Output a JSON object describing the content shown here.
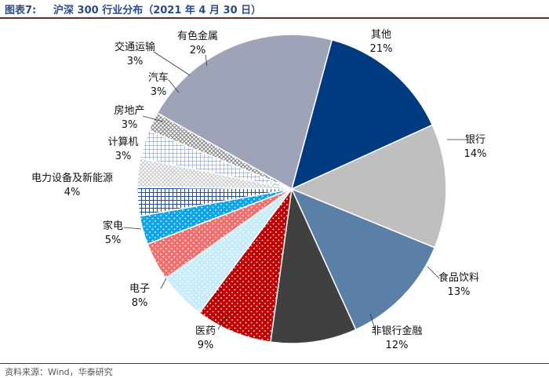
{
  "header": {
    "figure_label": "图表7:",
    "title": "沪深 300 行业分布（2021 年 4 月 30 日）"
  },
  "footer": {
    "source": "资料来源：Wind，华泰研究"
  },
  "chart_data": {
    "type": "pie",
    "title": "沪深 300 行业分布（2021 年 4 月 30 日）",
    "slices": [
      {
        "label": "其他",
        "value": 21,
        "display": "21%",
        "color": "#9fa3b8",
        "pattern": "none"
      },
      {
        "label": "银行",
        "value": 14,
        "display": "14%",
        "color": "#003a80",
        "pattern": "none"
      },
      {
        "label": "食品饮料",
        "value": 13,
        "display": "13%",
        "color": "#bfbfbf",
        "pattern": "none"
      },
      {
        "label": "非银行金融",
        "value": 12,
        "display": "12%",
        "color": "#5b80a8",
        "pattern": "none"
      },
      {
        "label": "医药",
        "value": 9,
        "display": "9%",
        "color": "#404040",
        "pattern": "none"
      },
      {
        "label": "电子",
        "value": 8,
        "display": "8%",
        "color": "#c00000",
        "pattern": "dots"
      },
      {
        "label": "家电",
        "value": 5,
        "display": "5%",
        "color": "#c9ecfa",
        "pattern": "dots"
      },
      {
        "label": "电力设备及新能源",
        "value": 4,
        "display": "4%",
        "color": "#f07070",
        "pattern": "dots"
      },
      {
        "label": "计算机",
        "value": 3,
        "display": "3%",
        "color": "#0ea5e8",
        "pattern": "dots"
      },
      {
        "label": "房地产",
        "value": 3,
        "display": "3%",
        "color": "#1f4e9a",
        "pattern": "grid-dark"
      },
      {
        "label": "汽车",
        "value": 3,
        "display": "3%",
        "color": "#c8c8c8",
        "pattern": "grid-light"
      },
      {
        "label": "交通运输",
        "value": 3,
        "display": "3%",
        "color": "#6a86c8",
        "pattern": "grid-blue"
      },
      {
        "label": "有色金属",
        "value": 2,
        "display": "2%",
        "color": "#808080",
        "pattern": "grid-gray"
      }
    ]
  }
}
